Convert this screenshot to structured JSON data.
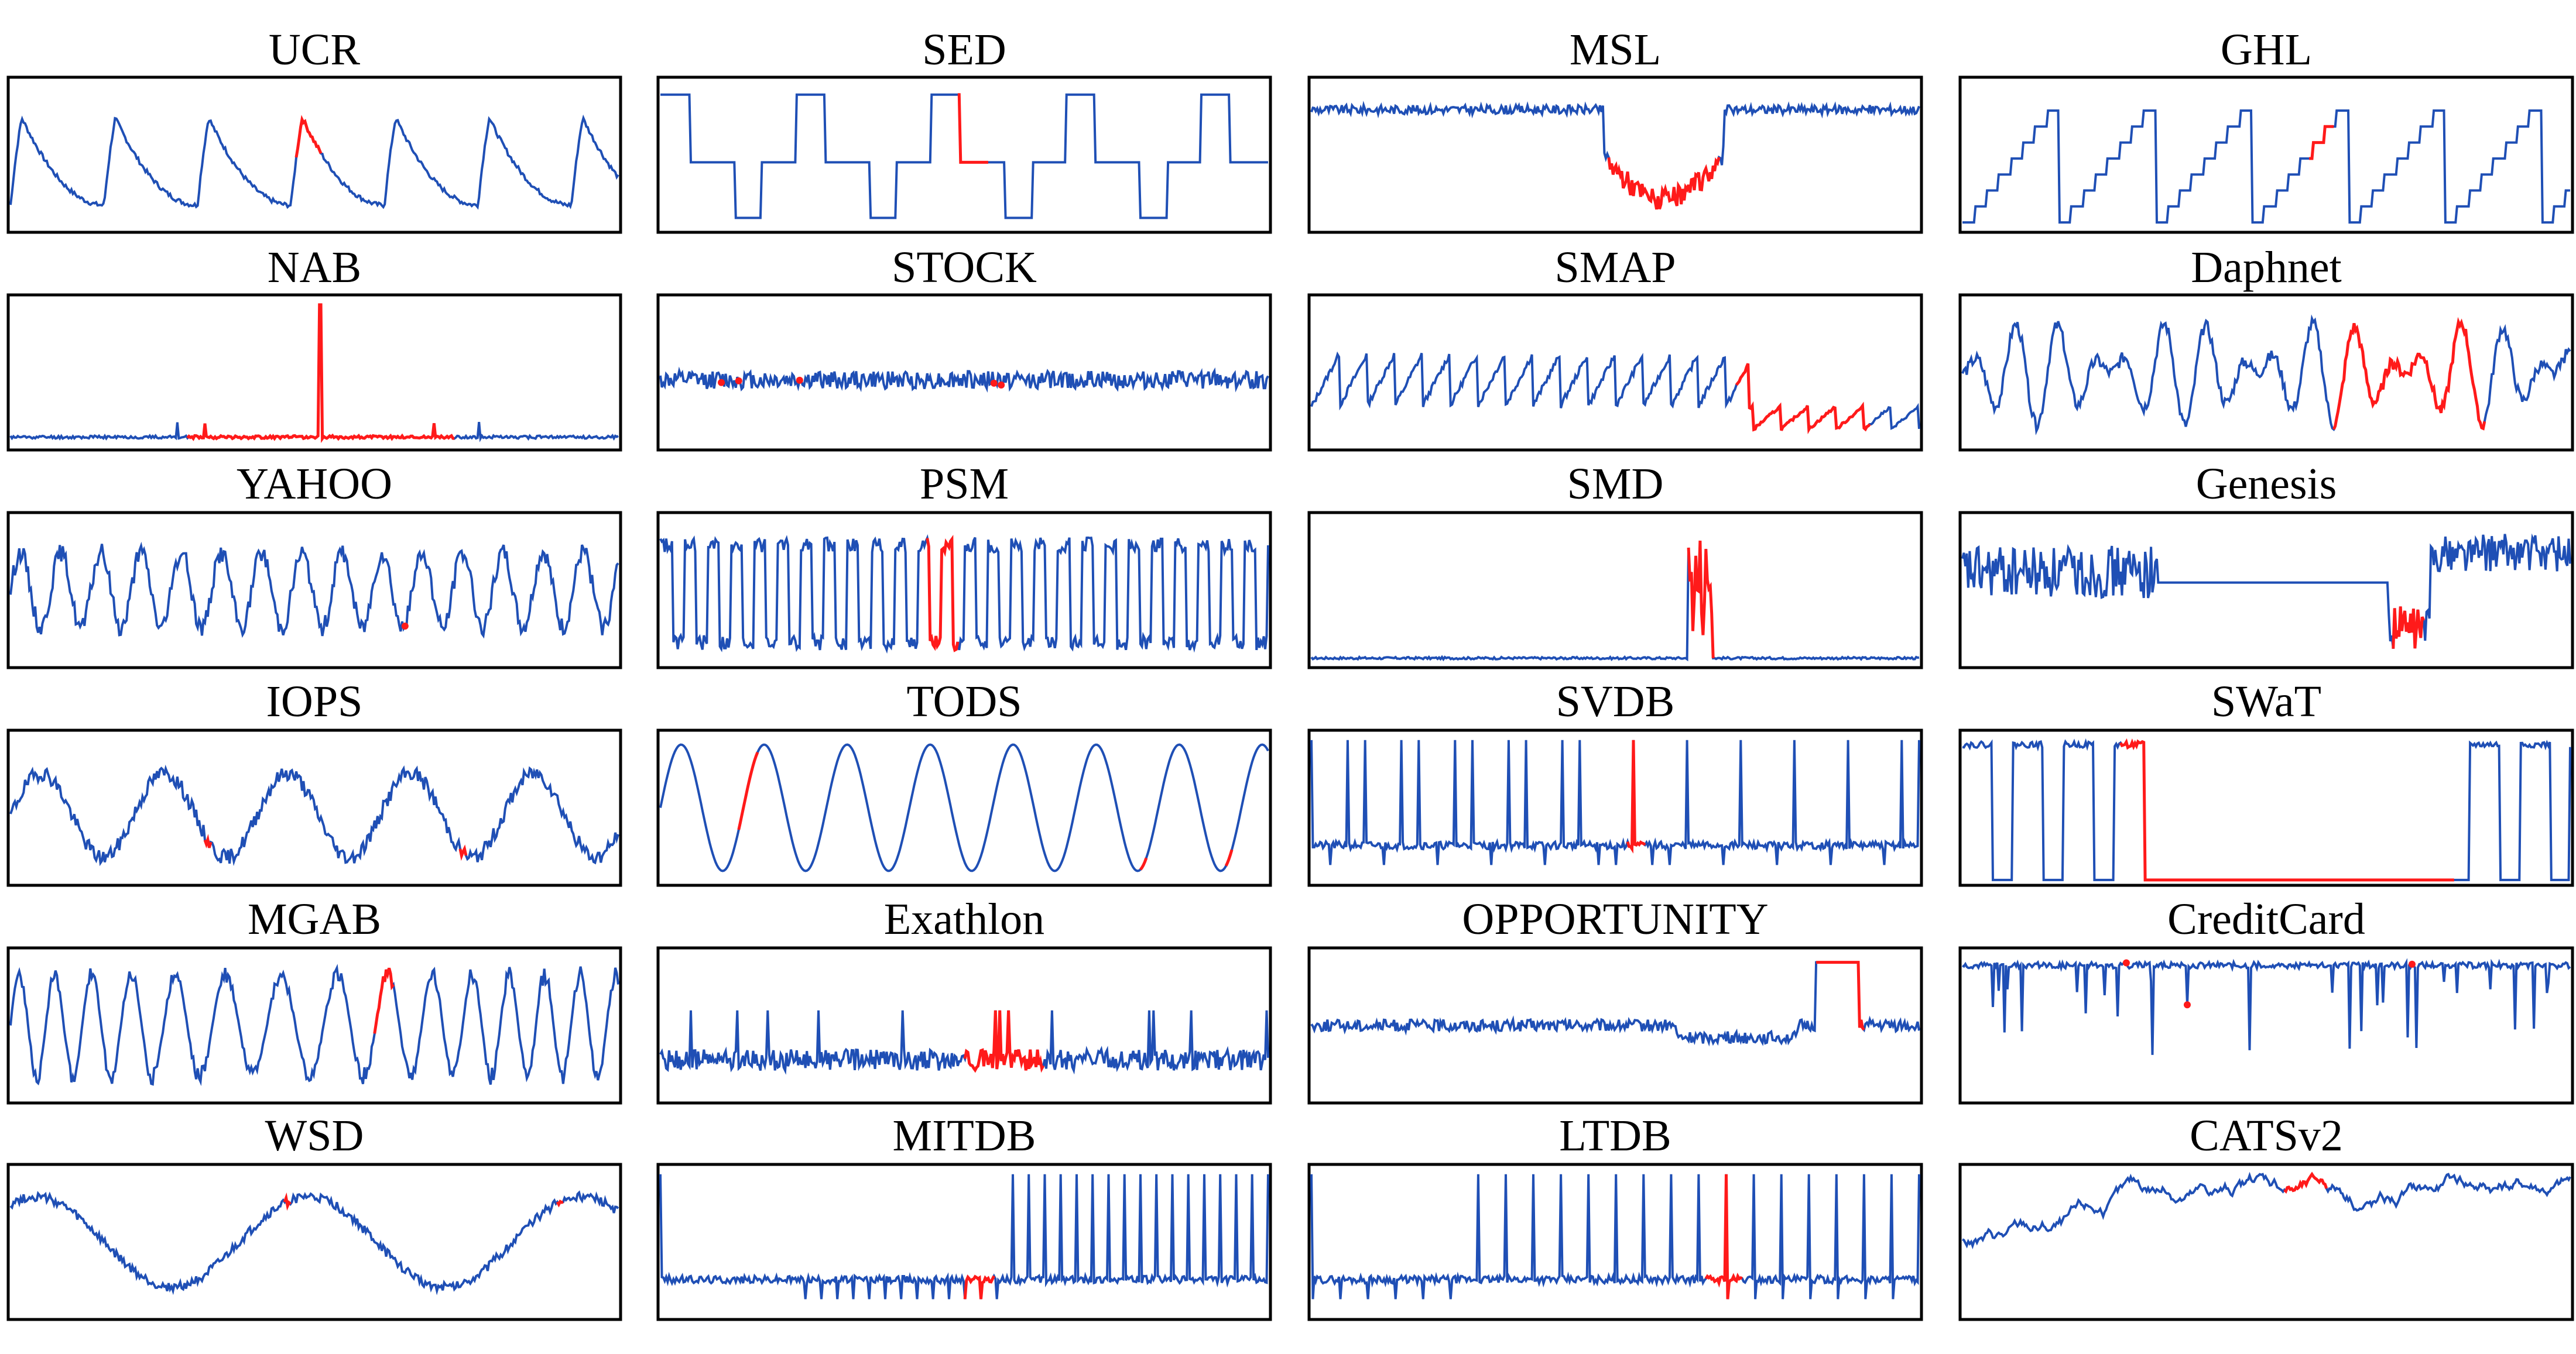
{
  "chart_data": [
    {
      "type": "line",
      "title": "UCR",
      "shape": "periodic-peaks",
      "anomaly_style": "segment",
      "anomaly_at": [
        0.47,
        0.51
      ]
    },
    {
      "type": "line",
      "title": "SED",
      "shape": "square-wave",
      "anomaly_style": "segment",
      "anomaly_at": [
        0.49,
        0.54
      ]
    },
    {
      "type": "line",
      "title": "MSL",
      "shape": "plateau-dip",
      "anomaly_style": "segment",
      "anomaly_at": [
        0.49,
        0.67
      ]
    },
    {
      "type": "line",
      "title": "GHL",
      "shape": "staircase-ramp",
      "anomaly_style": "segment",
      "anomaly_at": [
        0.57,
        0.61
      ]
    },
    {
      "type": "line",
      "title": "NAB",
      "shape": "flat-spike",
      "anomaly_style": "segment",
      "anomaly_at": [
        0.29,
        0.73
      ]
    },
    {
      "type": "line",
      "title": "STOCK",
      "shape": "noisy-spikes",
      "anomaly_style": "points",
      "anomaly_at": [
        0.13,
        0.1,
        0.23,
        0.55,
        0.56
      ]
    },
    {
      "type": "line",
      "title": "SMAP",
      "shape": "sawtooth-decay",
      "anomaly_style": "segment",
      "anomaly_at": [
        0.7,
        0.92
      ]
    },
    {
      "type": "line",
      "title": "Daphnet",
      "shape": "oscillation",
      "anomaly_style": "segment",
      "anomaly_at": [
        0.61,
        0.86
      ]
    },
    {
      "type": "line",
      "title": "YAHOO",
      "shape": "periodic-noisy",
      "anomaly_style": "points",
      "anomaly_at": [
        0.65
      ]
    },
    {
      "type": "line",
      "title": "PSM",
      "shape": "dense-periodic",
      "anomaly_style": "segment",
      "anomaly_at": [
        0.44,
        0.49
      ]
    },
    {
      "type": "line",
      "title": "SMD",
      "shape": "flat-burst",
      "anomaly_style": "segment",
      "anomaly_at": [
        0.62,
        0.66
      ]
    },
    {
      "type": "line",
      "title": "Genesis",
      "shape": "regime-shift",
      "anomaly_style": "segment",
      "anomaly_at": [
        0.71,
        0.76
      ]
    },
    {
      "type": "line",
      "title": "IOPS",
      "shape": "wave-noisy",
      "anomaly_style": "segment",
      "anomaly_at": [
        0.32,
        0.33,
        0.74,
        0.75
      ]
    },
    {
      "type": "line",
      "title": "TODS",
      "shape": "sine",
      "anomaly_style": "segment",
      "anomaly_at": [
        0.13,
        0.16,
        0.79,
        0.8,
        0.93,
        0.94
      ]
    },
    {
      "type": "line",
      "title": "SVDB",
      "shape": "ecg",
      "anomaly_style": "segment",
      "anomaly_at": [
        0.52,
        0.55
      ]
    },
    {
      "type": "line",
      "title": "SWaT",
      "shape": "binary-switch",
      "anomaly_style": "segment",
      "anomaly_at": [
        0.26,
        0.81
      ]
    },
    {
      "type": "line",
      "title": "MGAB",
      "shape": "chaotic",
      "anomaly_style": "segment",
      "anomaly_at": [
        0.6,
        0.63
      ]
    },
    {
      "type": "line",
      "title": "Exathlon",
      "shape": "dense-band",
      "anomaly_style": "segment",
      "anomaly_at": [
        0.5,
        0.63
      ]
    },
    {
      "type": "line",
      "title": "OPPORTUNITY",
      "shape": "noisy-drift",
      "anomaly_style": "segment",
      "anomaly_at": [
        0.83,
        0.91
      ]
    },
    {
      "type": "line",
      "title": "CreditCard",
      "shape": "downward-spikes",
      "anomaly_style": "points",
      "anomaly_at": [
        0.27,
        0.37,
        0.74
      ]
    },
    {
      "type": "line",
      "title": "WSD",
      "shape": "wave-noisy-slow",
      "anomaly_style": "segment",
      "anomaly_at": [
        0.45,
        0.46,
        0.9,
        0.91
      ]
    },
    {
      "type": "line",
      "title": "MITDB",
      "shape": "ecg-dense",
      "anomaly_style": "segment",
      "anomaly_at": [
        0.5,
        0.55
      ]
    },
    {
      "type": "line",
      "title": "LTDB",
      "shape": "ecg-sparse",
      "anomaly_style": "segment",
      "anomaly_at": [
        0.65,
        0.71
      ]
    },
    {
      "type": "line",
      "title": "CATSv2",
      "shape": "random-walk",
      "anomaly_style": "segment",
      "anomaly_at": [
        0.53,
        0.6
      ]
    }
  ],
  "colors": {
    "normal": "#1f4fb5",
    "anomaly": "#ff1a1a",
    "frame": "#000000"
  }
}
